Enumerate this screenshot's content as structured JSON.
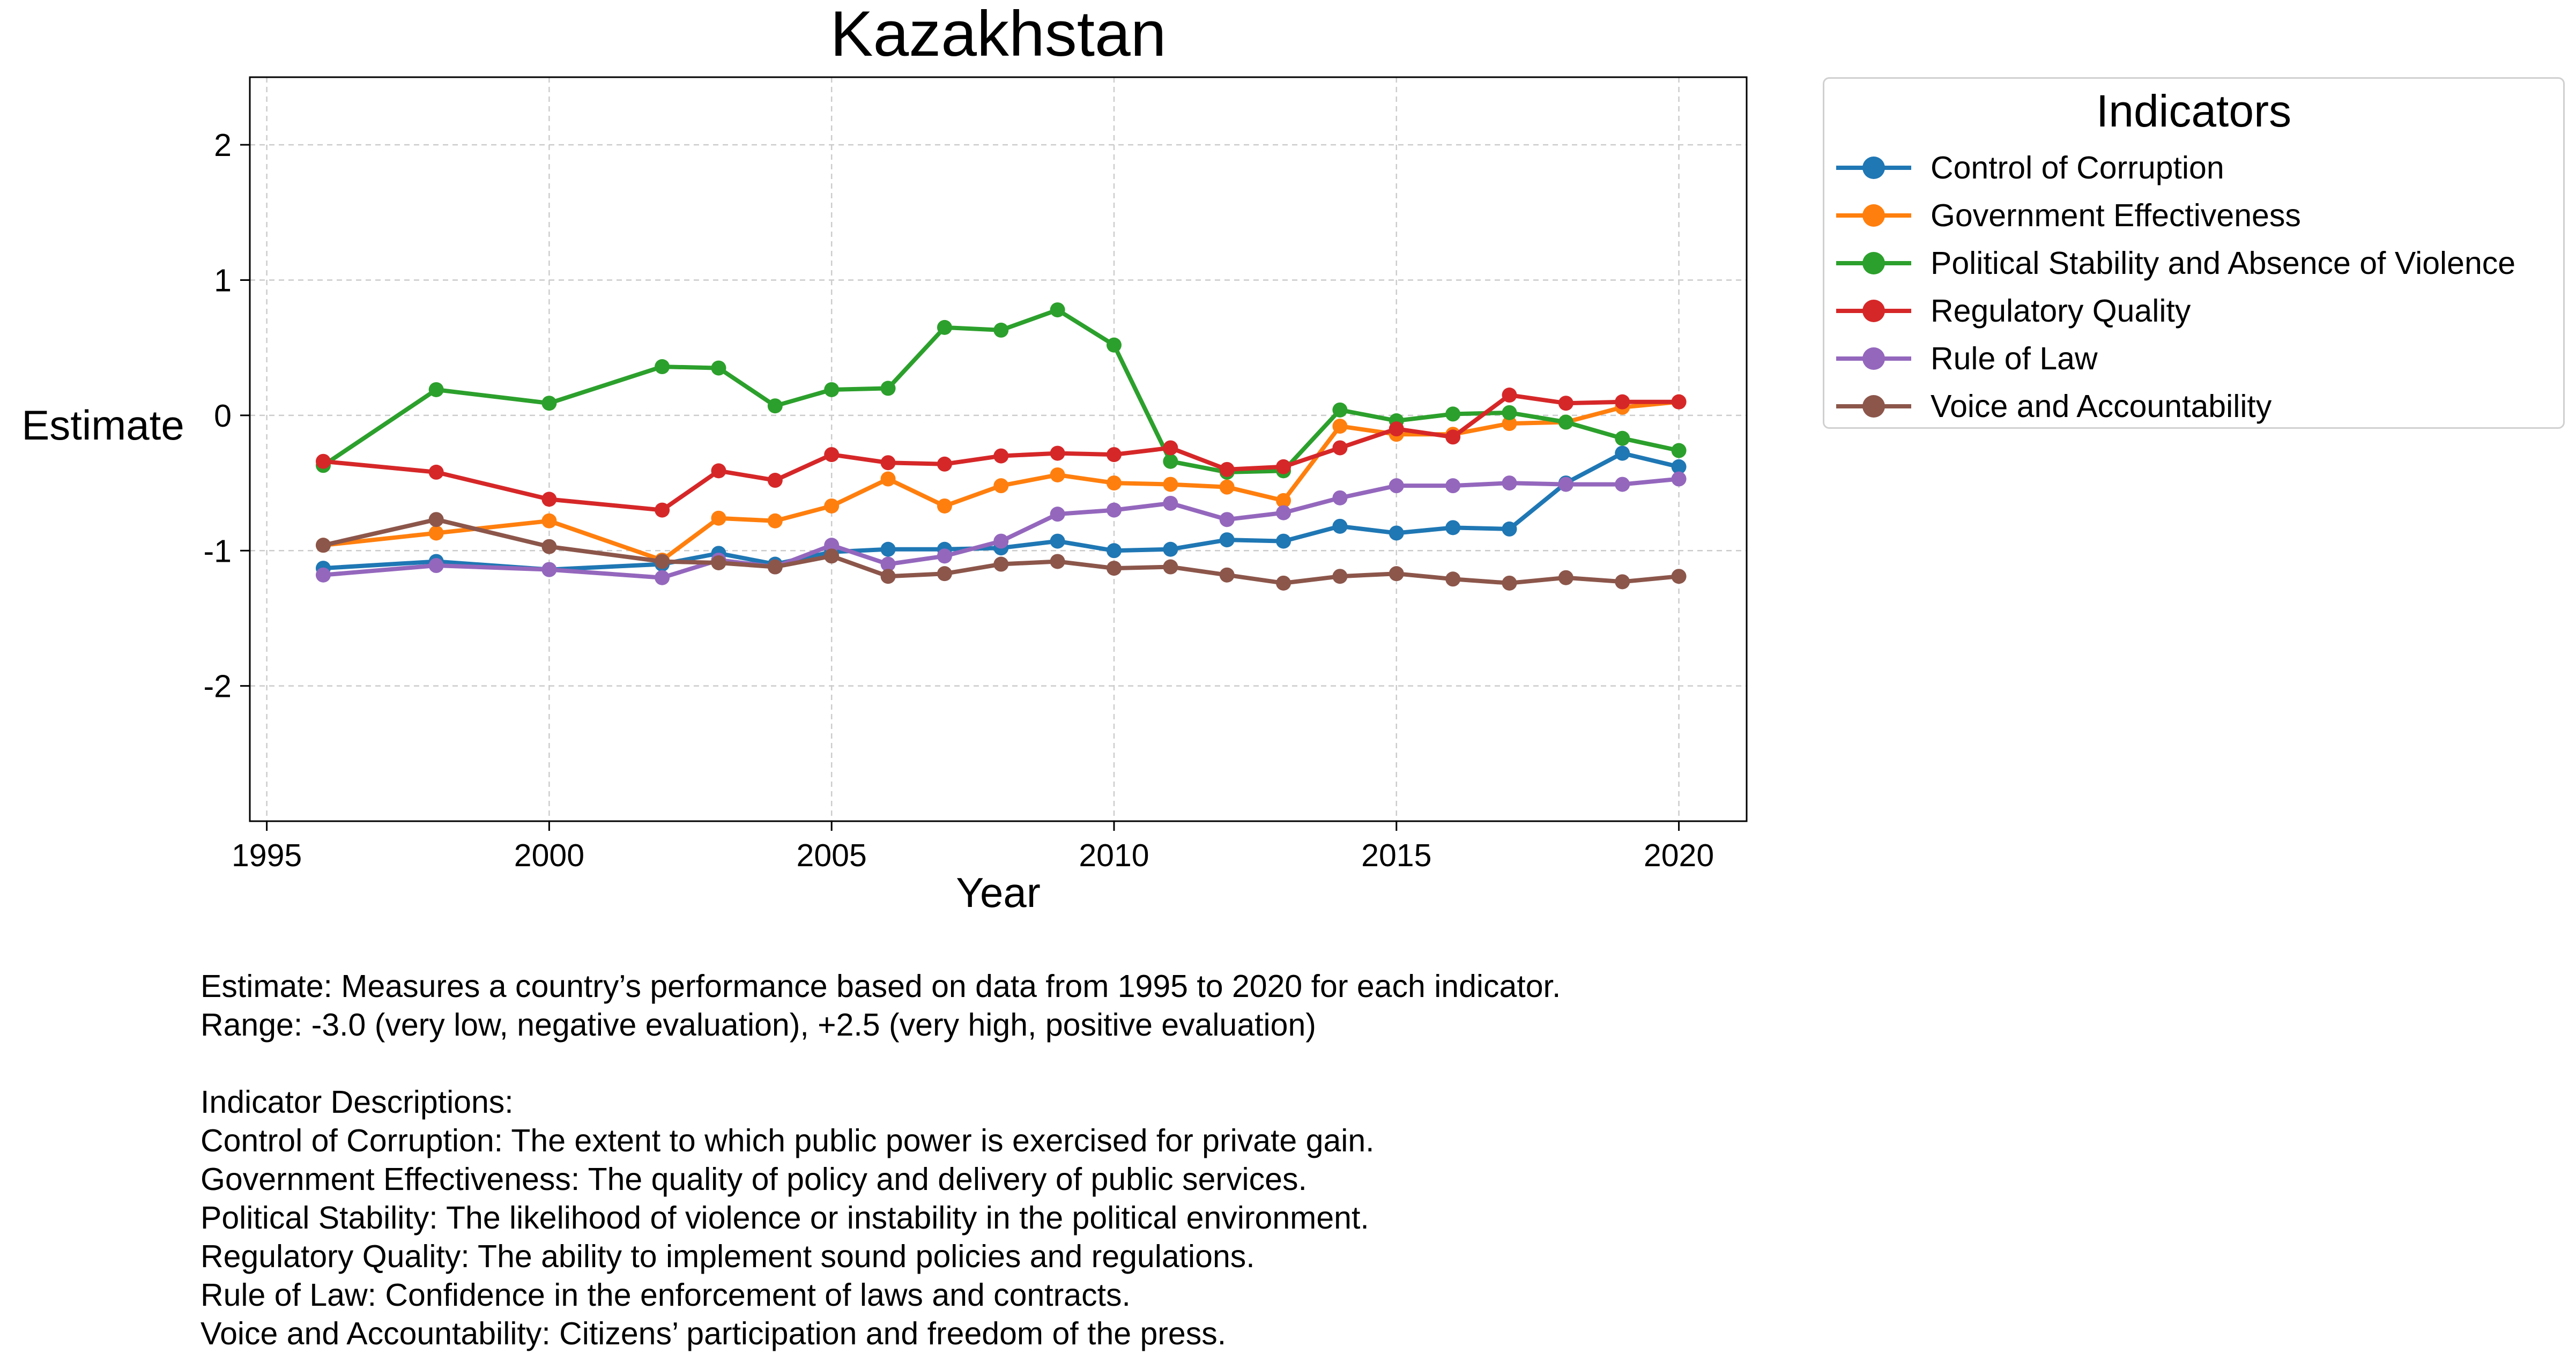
{
  "chart_data": {
    "type": "line",
    "title": "Kazakhstan",
    "xlabel": "Year",
    "ylabel": "Estimate",
    "xlim": [
      1994.7,
      2021.2
    ],
    "ylim": [
      -3.0,
      2.5
    ],
    "xticks": [
      1995,
      2000,
      2005,
      2010,
      2015,
      2020
    ],
    "xtick_labels": [
      "1995",
      "2000",
      "2005",
      "2010",
      "2015",
      "2020"
    ],
    "yticks": [
      -2,
      -1,
      0,
      1,
      2
    ],
    "ytick_labels": [
      "-2",
      "-1",
      "0",
      "1",
      "2"
    ],
    "grid": true,
    "legend_title": "Indicators",
    "legend_position": "outside-top-right",
    "x": [
      1996,
      1998,
      2000,
      2002,
      2003,
      2004,
      2005,
      2006,
      2007,
      2008,
      2009,
      2010,
      2011,
      2012,
      2013,
      2014,
      2015,
      2016,
      2017,
      2018,
      2019,
      2020
    ],
    "series": [
      {
        "name": "Control of Corruption",
        "color": "#1f77b4",
        "values": [
          -1.13,
          -1.08,
          -1.14,
          -1.1,
          -1.02,
          -1.1,
          -1.01,
          -0.99,
          -0.99,
          -0.98,
          -0.93,
          -1.0,
          -0.99,
          -0.92,
          -0.93,
          -0.82,
          -0.87,
          -0.83,
          -0.84,
          -0.5,
          -0.28,
          -0.38
        ]
      },
      {
        "name": "Government Effectiveness",
        "color": "#ff7f0e",
        "values": [
          -0.96,
          -0.87,
          -0.78,
          -1.07,
          -0.76,
          -0.78,
          -0.67,
          -0.47,
          -0.67,
          -0.52,
          -0.44,
          -0.5,
          -0.51,
          -0.53,
          -0.63,
          -0.08,
          -0.14,
          -0.14,
          -0.06,
          -0.05,
          0.06,
          0.1
        ]
      },
      {
        "name": "Political Stability and Absence of Violence",
        "color": "#2ca02c",
        "values": [
          -0.37,
          0.19,
          0.09,
          0.36,
          0.35,
          0.07,
          0.19,
          0.2,
          0.65,
          0.63,
          0.78,
          0.52,
          -0.34,
          -0.42,
          -0.41,
          0.04,
          -0.04,
          0.01,
          0.02,
          -0.05,
          -0.17,
          -0.26
        ]
      },
      {
        "name": "Regulatory Quality",
        "color": "#d62728",
        "values": [
          -0.34,
          -0.42,
          -0.62,
          -0.7,
          -0.41,
          -0.48,
          -0.29,
          -0.35,
          -0.36,
          -0.3,
          -0.28,
          -0.29,
          -0.24,
          -0.4,
          -0.38,
          -0.24,
          -0.1,
          -0.16,
          0.15,
          0.09,
          0.1,
          0.1
        ]
      },
      {
        "name": "Rule of Law",
        "color": "#9467bd",
        "values": [
          -1.18,
          -1.11,
          -1.14,
          -1.2,
          -1.07,
          -1.12,
          -0.96,
          -1.1,
          -1.04,
          -0.93,
          -0.73,
          -0.7,
          -0.65,
          -0.77,
          -0.72,
          -0.61,
          -0.52,
          -0.52,
          -0.5,
          -0.51,
          -0.51,
          -0.47
        ]
      },
      {
        "name": "Voice and Accountability",
        "color": "#8c564b",
        "values": [
          -0.96,
          -0.77,
          -0.97,
          -1.08,
          -1.09,
          -1.12,
          -1.04,
          -1.19,
          -1.17,
          -1.1,
          -1.08,
          -1.13,
          -1.12,
          -1.18,
          -1.24,
          -1.19,
          -1.17,
          -1.21,
          -1.24,
          -1.2,
          -1.23,
          -1.19
        ]
      }
    ]
  },
  "notes": {
    "estimate_line": "Estimate: Measures a country’s performance based on data from 1995 to 2020 for each indicator.",
    "range_line": "Range: -3.0 (very low, negative evaluation), +2.5 (very high, positive evaluation)",
    "descriptions_header": "Indicator Descriptions:",
    "descriptions": [
      "Control of Corruption: The extent to which public power is exercised for private gain.",
      "Government Effectiveness: The quality of policy and delivery of public services.",
      "Political Stability: The likelihood of violence or instability in the political environment.",
      "Regulatory Quality: The ability to implement sound policies and regulations.",
      "Rule of Law: Confidence in the enforcement of laws and contracts.",
      "Voice and Accountability: Citizens’ participation and freedom of the press."
    ]
  }
}
